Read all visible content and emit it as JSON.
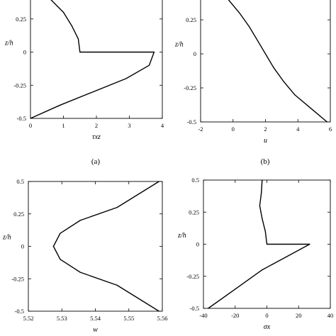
{
  "chart_data": [
    {
      "type": "line",
      "panel_label": "(a)",
      "xlabel": "τxz",
      "ylabel": "z/h",
      "xlim": [
        0,
        4
      ],
      "ylim": [
        -0.5,
        0.5
      ],
      "xticks": [
        "0",
        "1",
        "2",
        "3",
        "4"
      ],
      "yticks": [
        "-0.5",
        "-0.25",
        "0",
        "0.25"
      ],
      "x": [
        0.3,
        0.6,
        1.0,
        1.25,
        1.45,
        1.5,
        3.75,
        3.6,
        2.9,
        1.9,
        0.9,
        0.0
      ],
      "y": [
        0.5,
        0.4,
        0.3,
        0.2,
        0.1,
        0.0,
        0.0,
        -0.1,
        -0.2,
        -0.3,
        -0.4,
        -0.5
      ]
    },
    {
      "type": "line",
      "panel_label": "(b)",
      "xlabel": "u",
      "ylabel": "z/h",
      "xlim": [
        -2,
        6
      ],
      "ylim": [
        -0.5,
        0.5
      ],
      "xticks": [
        "-2",
        "0",
        "2",
        "4",
        "6"
      ],
      "yticks": [
        "-0.5",
        "-0.25",
        "0",
        "0.25"
      ],
      "x": [
        -1.1,
        -0.3,
        0.4,
        1.0,
        1.5,
        2.0,
        2.5,
        3.1,
        3.8,
        4.8,
        5.8
      ],
      "y": [
        0.5,
        0.4,
        0.3,
        0.2,
        0.1,
        0.0,
        -0.1,
        -0.2,
        -0.3,
        -0.4,
        -0.5
      ]
    },
    {
      "type": "line",
      "panel_label": "",
      "xlabel": "w",
      "ylabel": "z/h",
      "xlim": [
        5.52,
        5.56
      ],
      "ylim": [
        -0.5,
        0.5
      ],
      "xticks": [
        "5.52",
        "5.53",
        "5.54",
        "5.55",
        "5.56"
      ],
      "yticks": [
        "-0.5",
        "-0.25",
        "0",
        "0.25",
        "0.5"
      ],
      "x": [
        5.559,
        5.5465,
        5.5355,
        5.5295,
        5.5275,
        5.5295,
        5.5355,
        5.5465,
        5.559
      ],
      "y": [
        0.5,
        0.3,
        0.2,
        0.1,
        0.0,
        -0.1,
        -0.2,
        -0.3,
        -0.5
      ]
    },
    {
      "type": "line",
      "panel_label": "",
      "xlabel": "σx",
      "ylabel": "z/h",
      "xlim": [
        -40,
        40
      ],
      "ylim": [
        -0.5,
        0.5
      ],
      "xticks": [
        "-40",
        "-20",
        "0",
        "20",
        "40"
      ],
      "yticks": [
        "-0.5",
        "-0.25",
        "0",
        "0.25",
        "0.5"
      ],
      "x": [
        -3,
        -3.5,
        -4.5,
        -3,
        -1,
        0,
        27,
        12,
        -3,
        -20,
        -37
      ],
      "y": [
        0.5,
        0.4,
        0.3,
        0.2,
        0.1,
        0.0,
        0.0,
        -0.1,
        -0.2,
        -0.35,
        -0.5
      ]
    }
  ]
}
